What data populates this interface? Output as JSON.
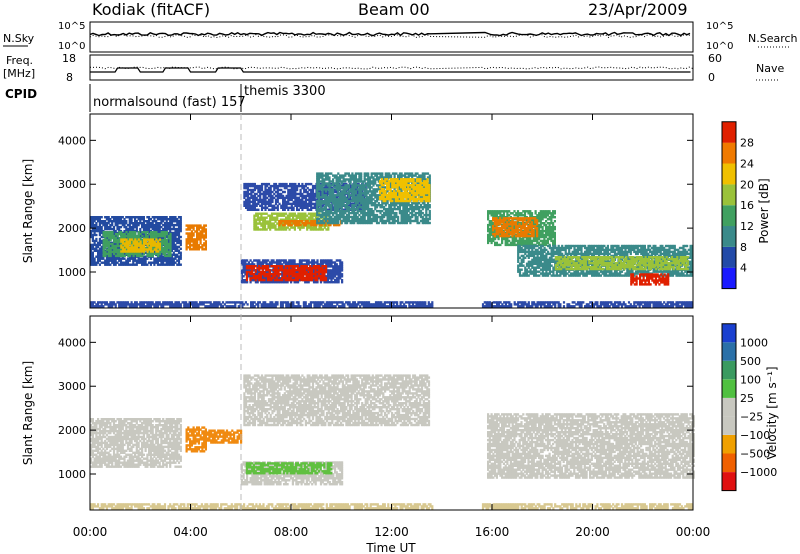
{
  "header": {
    "station": "Kodiak (fitACF)",
    "beam": "Beam 00",
    "date": "23/Apr/2009"
  },
  "top_panels": {
    "nsky_label": "N.Sky",
    "nsky_ticks": [
      "10^5",
      "10^0"
    ],
    "nsearch_label": "N.Search",
    "nsearch_ticks": [
      "10^5",
      "10^0"
    ],
    "freq_label_1": "Freq.",
    "freq_label_2": "[MHz]",
    "freq_ticks": [
      "18",
      "8"
    ],
    "nave_label": "Nave",
    "nave_ticks": [
      "60",
      "0"
    ],
    "cpid_label": "CPID",
    "cpid_segments": [
      {
        "label": "normalsound (fast) 157",
        "start_h": 0,
        "end_h": 6
      },
      {
        "label": "themis 3300",
        "start_h": 6,
        "end_h": 24
      }
    ]
  },
  "chart_data": [
    {
      "type": "heatmap",
      "name": "power",
      "ylabel": "Slant Range [km]",
      "xlabel": "",
      "xlim": [
        0,
        24
      ],
      "ylim": [
        180,
        4600
      ],
      "yticks": [
        "1000",
        "2000",
        "3000",
        "4000"
      ],
      "colorbar_label": "Power [dB]",
      "colorbar_ticks": [
        "4",
        "8",
        "12",
        "16",
        "20",
        "24",
        "28"
      ],
      "colorbar_colors": [
        "#1a1aff",
        "#224aa8",
        "#3a8a8a",
        "#40a060",
        "#9ac23a",
        "#f0c000",
        "#f07a00",
        "#e02000"
      ],
      "data_gap_h": [
        13.6,
        15.6
      ],
      "regions": [
        {
          "t0": 0.0,
          "t1": 13.6,
          "r0": 200,
          "r1": 330,
          "color": "#2c4aa8"
        },
        {
          "t0": 15.6,
          "t1": 24.0,
          "r0": 200,
          "r1": 330,
          "color": "#2c4aa8"
        },
        {
          "t0": 0.0,
          "t1": 3.6,
          "r0": 1150,
          "r1": 2250,
          "color": "#234aa0"
        },
        {
          "t0": 0.5,
          "t1": 3.2,
          "r0": 1350,
          "r1": 1900,
          "color": "#40a060"
        },
        {
          "t0": 1.2,
          "t1": 2.8,
          "r0": 1450,
          "r1": 1750,
          "color": "#e8b800"
        },
        {
          "t0": 3.8,
          "t1": 4.6,
          "r0": 1500,
          "r1": 2050,
          "color": "#e87a00"
        },
        {
          "t0": 6.1,
          "t1": 11.0,
          "r0": 2400,
          "r1": 3000,
          "color": "#2c4aa8"
        },
        {
          "t0": 6.5,
          "t1": 9.5,
          "r0": 1950,
          "r1": 2350,
          "color": "#9ac23a"
        },
        {
          "t0": 7.5,
          "t1": 10.0,
          "r0": 2050,
          "r1": 2150,
          "color": "#e87a00"
        },
        {
          "t0": 9.0,
          "t1": 13.5,
          "r0": 2100,
          "r1": 3250,
          "color": "#3a8a8a"
        },
        {
          "t0": 11.5,
          "t1": 13.5,
          "r0": 2600,
          "r1": 3100,
          "color": "#f0c000"
        },
        {
          "t0": 6.0,
          "t1": 10.0,
          "r0": 750,
          "r1": 1250,
          "color": "#2c4aa8"
        },
        {
          "t0": 6.2,
          "t1": 9.4,
          "r0": 800,
          "r1": 1150,
          "color": "#e02000"
        },
        {
          "t0": 15.8,
          "t1": 18.5,
          "r0": 1600,
          "r1": 2400,
          "color": "#40a060"
        },
        {
          "t0": 16.0,
          "t1": 17.8,
          "r0": 1800,
          "r1": 2250,
          "color": "#e87a00"
        },
        {
          "t0": 17.0,
          "t1": 24.0,
          "r0": 900,
          "r1": 1600,
          "color": "#3a8a8a"
        },
        {
          "t0": 18.5,
          "t1": 23.8,
          "r0": 1050,
          "r1": 1350,
          "color": "#9ac23a"
        },
        {
          "t0": 21.5,
          "t1": 23.0,
          "r0": 700,
          "r1": 950,
          "color": "#e02000"
        }
      ]
    },
    {
      "type": "heatmap",
      "name": "velocity",
      "ylabel": "Slant Range [km]",
      "xlabel": "Time UT",
      "xlim": [
        0,
        24
      ],
      "ylim": [
        180,
        4600
      ],
      "yticks": [
        "1000",
        "2000",
        "3000",
        "4000"
      ],
      "xticks": [
        "00:00",
        "04:00",
        "08:00",
        "12:00",
        "16:00",
        "20:00",
        "00:00"
      ],
      "colorbar_label": "Velocity [m s⁻¹]",
      "colorbar_ticks": [
        "1000",
        "500",
        "100",
        "25",
        "−25",
        "−100",
        "−500",
        "−1000"
      ],
      "colorbar_colors": [
        "#1a40d0",
        "#2a70a8",
        "#3a9a60",
        "#50c040",
        "#c8c8c0",
        "#c8c8c0",
        "#f0a000",
        "#f06000",
        "#e01010"
      ],
      "data_gap_h": [
        13.6,
        15.6
      ],
      "regions": [
        {
          "t0": 0.0,
          "t1": 13.6,
          "r0": 200,
          "r1": 330,
          "color": "#d8c890"
        },
        {
          "t0": 15.6,
          "t1": 24.0,
          "r0": 200,
          "r1": 330,
          "color": "#d8c890"
        },
        {
          "t0": 0.0,
          "t1": 3.6,
          "r0": 1150,
          "r1": 2250,
          "color": "#c8c8c0"
        },
        {
          "t0": 3.8,
          "t1": 4.6,
          "r0": 1500,
          "r1": 2050,
          "color": "#f08a10"
        },
        {
          "t0": 4.5,
          "t1": 6.0,
          "r0": 1700,
          "r1": 2000,
          "color": "#f08a10"
        },
        {
          "t0": 6.1,
          "t1": 13.5,
          "r0": 2100,
          "r1": 3250,
          "color": "#c8c8c0"
        },
        {
          "t0": 6.0,
          "t1": 10.0,
          "r0": 750,
          "r1": 1250,
          "color": "#c8c8c0"
        },
        {
          "t0": 6.2,
          "t1": 9.6,
          "r0": 1000,
          "r1": 1250,
          "color": "#60c040"
        },
        {
          "t0": 15.8,
          "t1": 24.0,
          "r0": 900,
          "r1": 2350,
          "color": "#c8c8c0"
        }
      ]
    }
  ]
}
